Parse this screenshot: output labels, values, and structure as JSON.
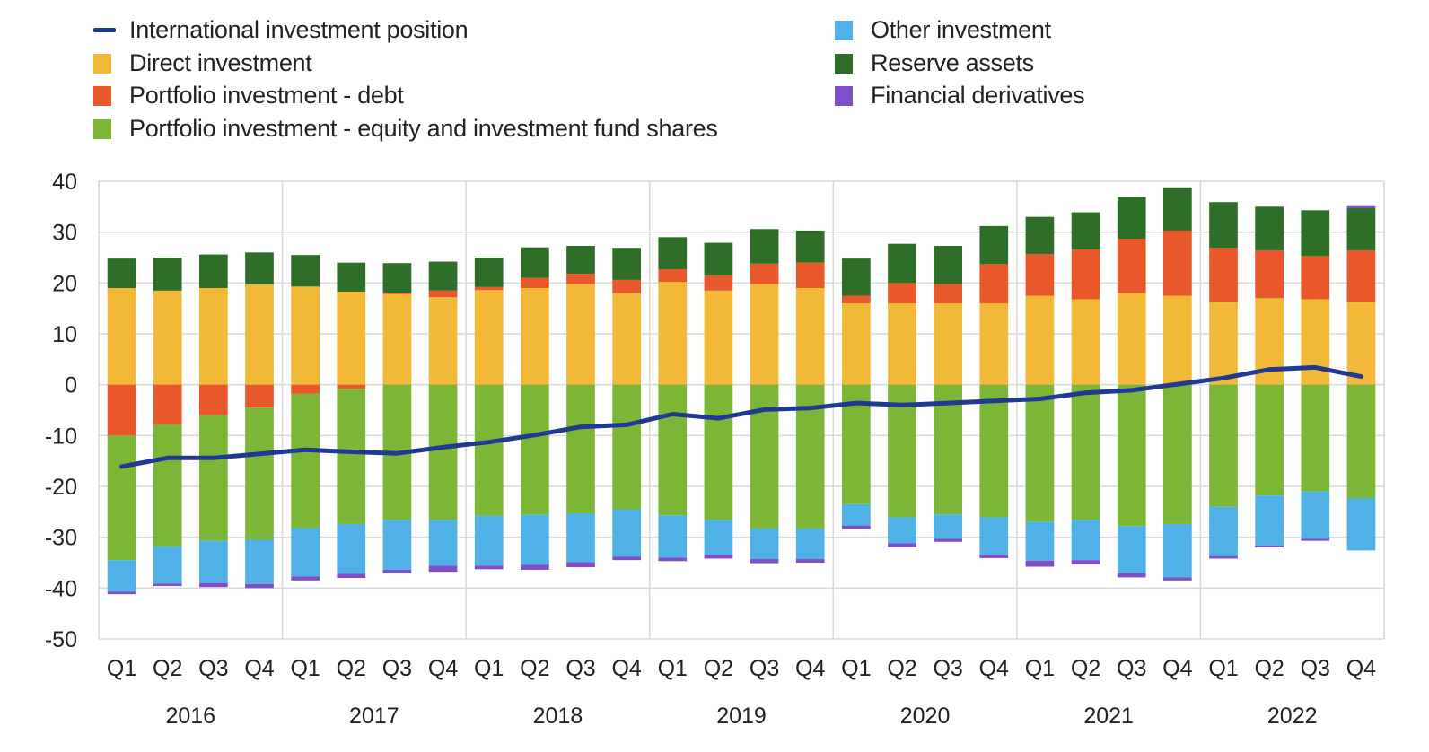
{
  "colors": {
    "iip_line": "#1f3a93",
    "direct": "#f2b838",
    "portfolio_debt": "#e8582a",
    "portfolio_equity": "#7bb637",
    "other": "#4fb1e5",
    "reserve": "#2f6e29",
    "derivatives": "#7e4fc9",
    "grid": "#d9d9d9",
    "axis_text": "#222222"
  },
  "legend": [
    {
      "key": "iip",
      "label": "International investment position",
      "kind": "line",
      "color_key": "iip_line"
    },
    {
      "key": "direct",
      "label": "Direct investment",
      "kind": "box",
      "color_key": "direct"
    },
    {
      "key": "portfolio_debt",
      "label": "Portfolio investment - debt",
      "kind": "box",
      "color_key": "portfolio_debt"
    },
    {
      "key": "portfolio_equity",
      "label": "Portfolio investment - equity and investment fund shares",
      "kind": "box",
      "color_key": "portfolio_equity"
    },
    {
      "key": "other",
      "label": "Other investment",
      "kind": "box",
      "color_key": "other"
    },
    {
      "key": "reserve",
      "label": "Reserve assets",
      "kind": "box",
      "color_key": "reserve"
    },
    {
      "key": "derivatives",
      "label": "Financial derivatives",
      "kind": "box",
      "color_key": "derivatives"
    }
  ],
  "chart_data": {
    "type": "bar",
    "stacked": true,
    "title": "",
    "xlabel": "",
    "ylabel": "",
    "ylim": [
      -50,
      40
    ],
    "yticks": [
      40,
      30,
      20,
      10,
      0,
      -10,
      -20,
      -30,
      -40,
      -50
    ],
    "grid": true,
    "legend_position": "top",
    "categories": [
      "Q1",
      "Q2",
      "Q3",
      "Q4",
      "Q1",
      "Q2",
      "Q3",
      "Q4",
      "Q1",
      "Q2",
      "Q3",
      "Q4",
      "Q1",
      "Q2",
      "Q3",
      "Q4",
      "Q1",
      "Q2",
      "Q3",
      "Q4",
      "Q1",
      "Q2",
      "Q3",
      "Q4",
      "Q1",
      "Q2",
      "Q3",
      "Q4"
    ],
    "years": [
      "2016",
      "2017",
      "2018",
      "2019",
      "2020",
      "2021",
      "2022"
    ],
    "series": [
      {
        "name": "Direct investment",
        "key": "direct",
        "values": [
          19,
          18.5,
          19,
          19.7,
          19.3,
          18.3,
          17.8,
          17.2,
          18.6,
          19,
          19.8,
          18,
          20.2,
          18.5,
          19.8,
          19,
          16,
          16,
          16,
          16,
          17.5,
          16.8,
          18,
          17.5,
          16.3,
          17,
          16.8,
          16.3
        ]
      },
      {
        "name": "Portfolio investment - debt",
        "key": "portfolio_debt",
        "values": [
          -10,
          -7.8,
          -6,
          -4.5,
          -1.8,
          -0.8,
          0.3,
          1.3,
          0.6,
          2,
          2,
          2.6,
          2.5,
          3,
          4,
          5,
          1.5,
          4,
          3.8,
          7.7,
          8.2,
          9.8,
          10.7,
          12.8,
          10.6,
          9.4,
          8.5,
          10.1
        ]
      },
      {
        "name": "Portfolio investment - equity and investment fund shares",
        "key": "portfolio_equity",
        "values": [
          -24.5,
          -24,
          -24.7,
          -26,
          -26.4,
          -26.6,
          -26.6,
          -26.6,
          -25.8,
          -25.6,
          -25.3,
          -24.5,
          -25.7,
          -26.6,
          -28.3,
          -28.3,
          -23.5,
          -26.1,
          -25.5,
          -26.1,
          -27,
          -26.6,
          -27.8,
          -27.4,
          -24,
          -21.8,
          -21,
          -22.3
        ]
      },
      {
        "name": "Other investment",
        "key": "other",
        "values": [
          -6.2,
          -7.3,
          -8.3,
          -8.7,
          -9.5,
          -9.8,
          -9.8,
          -9,
          -9.8,
          -9.8,
          -9.6,
          -9.3,
          -8.3,
          -6.8,
          -6,
          -6,
          -4.2,
          -5.1,
          -4.8,
          -7.3,
          -7.6,
          -7.9,
          -9.3,
          -10.5,
          -9.7,
          -9.8,
          -9.3,
          -10.3
        ]
      },
      {
        "name": "Reserve assets",
        "key": "reserve",
        "values": [
          5.8,
          6.5,
          6.6,
          6.3,
          6.2,
          5.7,
          5.8,
          5.7,
          5.8,
          6,
          5.5,
          6.3,
          6.3,
          6.4,
          6.8,
          6.3,
          7.3,
          7.7,
          7.5,
          7.5,
          7.3,
          7.3,
          8.2,
          8.5,
          9,
          8.6,
          9,
          8.3
        ]
      },
      {
        "name": "Financial derivatives",
        "key": "derivatives",
        "values": [
          -0.5,
          -0.5,
          -0.8,
          -0.8,
          -0.8,
          -0.8,
          -0.7,
          -1.2,
          -0.7,
          -1,
          -1,
          -0.7,
          -0.7,
          -0.8,
          -0.8,
          -0.7,
          -0.7,
          -0.8,
          -0.6,
          -0.7,
          -1.2,
          -0.8,
          -0.8,
          -0.6,
          -0.5,
          -0.4,
          -0.4,
          0.4
        ]
      }
    ],
    "line": {
      "name": "International investment position",
      "key": "iip",
      "values": [
        -16.1,
        -14.4,
        -14.4,
        -13.6,
        -12.8,
        -13.2,
        -13.5,
        -12.3,
        -11.3,
        -9.9,
        -8.3,
        -7.9,
        -5.8,
        -6.6,
        -4.9,
        -4.6,
        -3.6,
        -4,
        -3.6,
        -3.2,
        -2.8,
        -1.6,
        -1.1,
        0.1,
        1.3,
        3,
        3.4,
        1.6
      ]
    }
  }
}
